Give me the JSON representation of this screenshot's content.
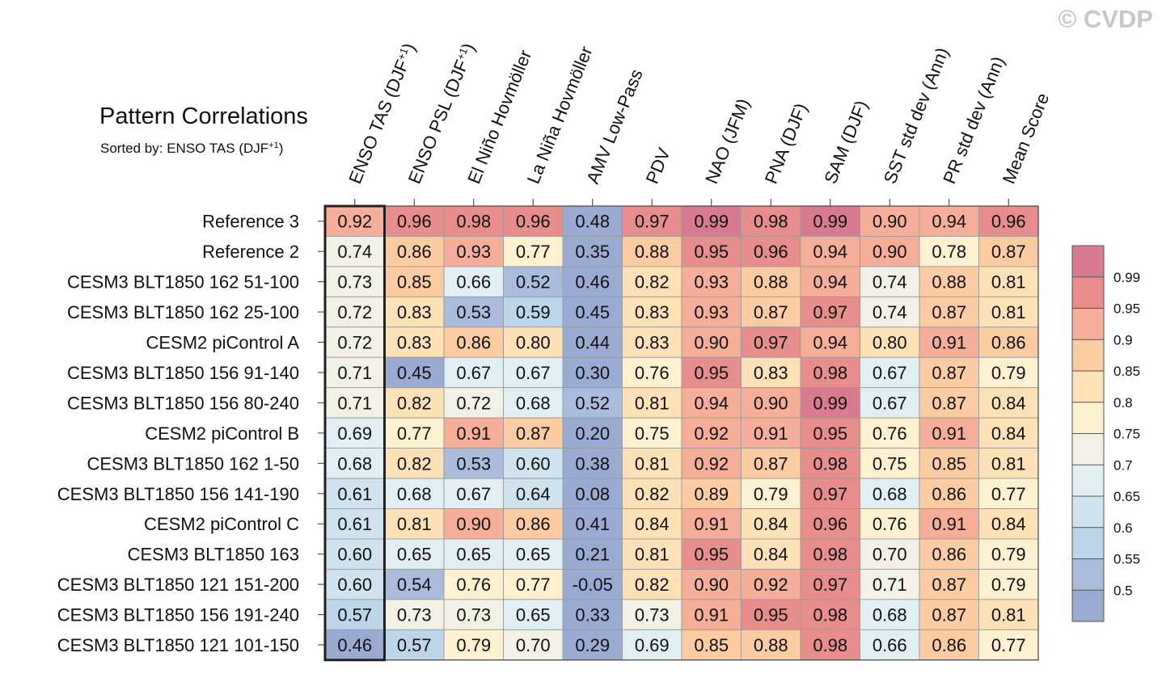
{
  "watermark": "© CVDP",
  "chart_data": {
    "type": "heatmap",
    "title": "Pattern Correlations",
    "subtitle": {
      "prefix": "Sorted by: ENSO TAS (DJF",
      "superscript": "+1",
      "suffix": ")"
    },
    "columns": [
      {
        "base": "ENSO TAS (DJF",
        "sup": "+1",
        "tail": ")"
      },
      {
        "base": "ENSO PSL (DJF",
        "sup": "+1",
        "tail": ")"
      },
      {
        "base": "El Niño Hovmöller",
        "sup": "",
        "tail": ""
      },
      {
        "base": "La Niña Hovmöller",
        "sup": "",
        "tail": ""
      },
      {
        "base": "AMV Low-Pass",
        "sup": "",
        "tail": ""
      },
      {
        "base": "PDV",
        "sup": "",
        "tail": ""
      },
      {
        "base": "NAO (JFM)",
        "sup": "",
        "tail": ""
      },
      {
        "base": "PNA (DJF)",
        "sup": "",
        "tail": ""
      },
      {
        "base": "SAM (DJF)",
        "sup": "",
        "tail": ""
      },
      {
        "base": "SST std dev (Ann)",
        "sup": "",
        "tail": ""
      },
      {
        "base": "PR std dev (Ann)",
        "sup": "",
        "tail": ""
      },
      {
        "base": "Mean Score",
        "sup": "",
        "tail": ""
      }
    ],
    "rows": [
      "Reference 3",
      "Reference 2",
      "CESM3 BLT1850 162 51-100",
      "CESM3 BLT1850 162 25-100",
      "CESM2 piControl A",
      "CESM3 BLT1850 156 91-140",
      "CESM3 BLT1850 156 80-240",
      "CESM2 piControl B",
      "CESM3 BLT1850 162 1-50",
      "CESM3 BLT1850 156 141-190",
      "CESM2 piControl C",
      "CESM3 BLT1850 163",
      "CESM3 BLT1850 121 151-200",
      "CESM3 BLT1850 156 191-240",
      "CESM3 BLT1850 121 101-150"
    ],
    "values": [
      [
        "0.92",
        "0.96",
        "0.98",
        "0.96",
        "0.48",
        "0.97",
        "0.99",
        "0.98",
        "0.99",
        "0.90",
        "0.94",
        "0.96"
      ],
      [
        "0.74",
        "0.86",
        "0.93",
        "0.77",
        "0.35",
        "0.88",
        "0.95",
        "0.96",
        "0.94",
        "0.90",
        "0.78",
        "0.87"
      ],
      [
        "0.73",
        "0.85",
        "0.66",
        "0.52",
        "0.46",
        "0.82",
        "0.93",
        "0.88",
        "0.94",
        "0.74",
        "0.88",
        "0.81"
      ],
      [
        "0.72",
        "0.83",
        "0.53",
        "0.59",
        "0.45",
        "0.83",
        "0.93",
        "0.87",
        "0.97",
        "0.74",
        "0.87",
        "0.81"
      ],
      [
        "0.72",
        "0.83",
        "0.86",
        "0.80",
        "0.44",
        "0.83",
        "0.90",
        "0.97",
        "0.94",
        "0.80",
        "0.91",
        "0.86"
      ],
      [
        "0.71",
        "0.45",
        "0.67",
        "0.67",
        "0.30",
        "0.76",
        "0.95",
        "0.83",
        "0.98",
        "0.67",
        "0.87",
        "0.79"
      ],
      [
        "0.71",
        "0.82",
        "0.72",
        "0.68",
        "0.52",
        "0.81",
        "0.94",
        "0.90",
        "0.99",
        "0.67",
        "0.87",
        "0.84"
      ],
      [
        "0.69",
        "0.77",
        "0.91",
        "0.87",
        "0.20",
        "0.75",
        "0.92",
        "0.91",
        "0.95",
        "0.76",
        "0.91",
        "0.84"
      ],
      [
        "0.68",
        "0.82",
        "0.53",
        "0.60",
        "0.38",
        "0.81",
        "0.92",
        "0.87",
        "0.98",
        "0.75",
        "0.85",
        "0.81"
      ],
      [
        "0.61",
        "0.68",
        "0.67",
        "0.64",
        "0.08",
        "0.82",
        "0.89",
        "0.79",
        "0.97",
        "0.68",
        "0.86",
        "0.77"
      ],
      [
        "0.61",
        "0.81",
        "0.90",
        "0.86",
        "0.41",
        "0.84",
        "0.91",
        "0.84",
        "0.96",
        "0.76",
        "0.91",
        "0.84"
      ],
      [
        "0.60",
        "0.65",
        "0.65",
        "0.65",
        "0.21",
        "0.81",
        "0.95",
        "0.84",
        "0.98",
        "0.70",
        "0.86",
        "0.79"
      ],
      [
        "0.60",
        "0.54",
        "0.76",
        "0.77",
        "-0.05",
        "0.82",
        "0.90",
        "0.92",
        "0.97",
        "0.71",
        "0.87",
        "0.79"
      ],
      [
        "0.57",
        "0.73",
        "0.73",
        "0.65",
        "0.33",
        "0.73",
        "0.91",
        "0.95",
        "0.98",
        "0.68",
        "0.87",
        "0.81"
      ],
      [
        "0.46",
        "0.57",
        "0.79",
        "0.70",
        "0.29",
        "0.69",
        "0.85",
        "0.88",
        "0.98",
        "0.66",
        "0.86",
        "0.77"
      ]
    ],
    "colorbar": {
      "levels": [
        0.5,
        0.55,
        0.6,
        0.65,
        0.7,
        0.75,
        0.8,
        0.85,
        0.9,
        0.95,
        0.99
      ],
      "labels": [
        "0.5",
        "0.55",
        "0.6",
        "0.65",
        "0.7",
        "0.75",
        "0.8",
        "0.85",
        "0.9",
        "0.95",
        "0.99"
      ],
      "colors": [
        "#9aabd2",
        "#aabcdc",
        "#bcd5e8",
        "#cfe3ee",
        "#e2eff2",
        "#f1f1e5",
        "#fdf1d0",
        "#fce1b6",
        "#fbcba1",
        "#f5ae97",
        "#e78e8d",
        "#d97b8e"
      ]
    },
    "highlight_column": "ENSO TAS (DJF+1)",
    "legend": "right"
  }
}
